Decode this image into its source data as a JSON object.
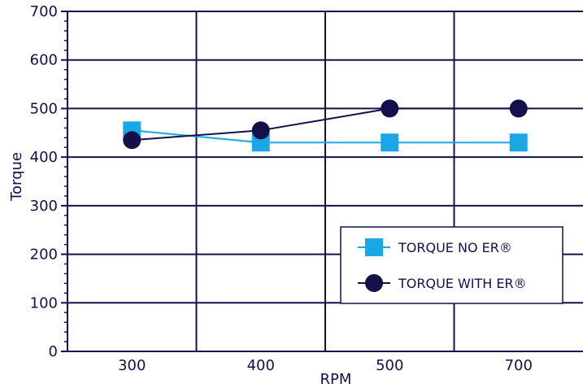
{
  "chart_data": {
    "type": "line",
    "title": "",
    "xlabel": "RPM",
    "ylabel": "Torque",
    "categories": [
      "300",
      "400",
      "500",
      "700"
    ],
    "ylim": [
      0,
      700
    ],
    "yticks": [
      "0",
      "100",
      "200",
      "300",
      "400",
      "500",
      "600",
      "700"
    ],
    "grid": true,
    "legend_position": "bottom-right",
    "series": [
      {
        "name": "TORQUE NO ER®",
        "values": [
          455,
          430,
          430,
          430
        ],
        "color": "#1aa7e6",
        "marker": "square"
      },
      {
        "name": "TORQUE WITH ER®",
        "values": [
          435,
          455,
          500,
          500
        ],
        "color": "#14104a",
        "marker": "circle"
      }
    ]
  },
  "colors": {
    "axis": "#14104a",
    "grid": "#14104a"
  }
}
